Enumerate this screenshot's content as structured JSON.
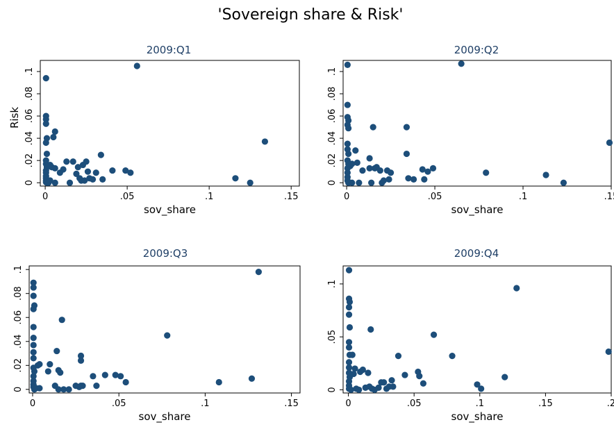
{
  "figure_title": "'Sovereign share & Risk'",
  "colors": {
    "marker": "#1d4e7a",
    "panel_title": "#1f3f66"
  },
  "chart_data": [
    {
      "type": "scatter",
      "title": "2009:Q1",
      "xlabel": "sov_share",
      "ylabel": "Risk",
      "xlim": [
        -0.003,
        0.155
      ],
      "ylim": [
        -0.003,
        0.11
      ],
      "x_ticks": [
        0,
        0.05,
        0.1,
        0.15
      ],
      "x_tick_labels": [
        "0",
        ".05",
        ".1",
        ".15"
      ],
      "y_ticks": [
        0,
        0.02,
        0.04,
        0.06,
        0.08,
        0.1
      ],
      "y_tick_labels": [
        "0",
        ".02",
        ".04",
        ".06",
        ".08",
        ".1"
      ],
      "grid": false,
      "points": [
        [
          0.0005,
          0.094
        ],
        [
          0.0005,
          0.06
        ],
        [
          0.0005,
          0.057
        ],
        [
          0.0005,
          0.053
        ],
        [
          0.001,
          0.04
        ],
        [
          0.0005,
          0.036
        ],
        [
          0.001,
          0.026
        ],
        [
          0.0005,
          0.02
        ],
        [
          0.0005,
          0.017
        ],
        [
          0.001,
          0.014
        ],
        [
          0.0005,
          0.011
        ],
        [
          0.0005,
          0.009
        ],
        [
          0.0005,
          0.006
        ],
        [
          0.0005,
          0.004
        ],
        [
          0.0005,
          0.002
        ],
        [
          0.0005,
          0.0005
        ],
        [
          0.001,
          0
        ],
        [
          0.002,
          0
        ],
        [
          0.003,
          0.016
        ],
        [
          0.003,
          0.002
        ],
        [
          0.004,
          0.014
        ],
        [
          0.005,
          0.041
        ],
        [
          0.006,
          0.046
        ],
        [
          0.006,
          0.013
        ],
        [
          0.006,
          0
        ],
        [
          0.009,
          0.009
        ],
        [
          0.011,
          0.012
        ],
        [
          0.013,
          0.019
        ],
        [
          0.015,
          0
        ],
        [
          0.017,
          0.019
        ],
        [
          0.019,
          0.008
        ],
        [
          0.02,
          0.014
        ],
        [
          0.021,
          0.004
        ],
        [
          0.022,
          0.002
        ],
        [
          0.023,
          0.016
        ],
        [
          0.024,
          0.002
        ],
        [
          0.025,
          0.019
        ],
        [
          0.026,
          0.01
        ],
        [
          0.027,
          0.004
        ],
        [
          0.029,
          0.003
        ],
        [
          0.031,
          0.009
        ],
        [
          0.034,
          0.025
        ],
        [
          0.035,
          0.003
        ],
        [
          0.041,
          0.011
        ],
        [
          0.049,
          0.011
        ],
        [
          0.052,
          0.009
        ],
        [
          0.056,
          0.105
        ],
        [
          0.116,
          0.004
        ],
        [
          0.125,
          0
        ],
        [
          0.134,
          0.037
        ]
      ]
    },
    {
      "type": "scatter",
      "title": "2009:Q2",
      "xlabel": "sov_share",
      "ylabel": "",
      "xlim": [
        -0.002,
        0.15
      ],
      "ylim": [
        -0.003,
        0.11
      ],
      "x_ticks": [
        0,
        0.05,
        0.1,
        0.15
      ],
      "x_tick_labels": [
        "0",
        ".05",
        ".1",
        ".15"
      ],
      "y_ticks": [
        0,
        0.02,
        0.04,
        0.06,
        0.08,
        0.1
      ],
      "y_tick_labels": [
        "0",
        ".02",
        ".04",
        ".06",
        ".08",
        ".1"
      ],
      "grid": false,
      "points": [
        [
          0.0005,
          0.106
        ],
        [
          0.0005,
          0.07
        ],
        [
          0.0005,
          0.059
        ],
        [
          0.001,
          0.056
        ],
        [
          0.0005,
          0.052
        ],
        [
          0.001,
          0.049
        ],
        [
          0.0005,
          0.035
        ],
        [
          0.0005,
          0.03
        ],
        [
          0.001,
          0.026
        ],
        [
          0.0005,
          0.02
        ],
        [
          0.001,
          0.017
        ],
        [
          0.0005,
          0.013
        ],
        [
          0.0005,
          0.009
        ],
        [
          0.0005,
          0.005
        ],
        [
          0.0005,
          0.002
        ],
        [
          0.001,
          0
        ],
        [
          0.002,
          0.015
        ],
        [
          0.003,
          0.017
        ],
        [
          0.003,
          0
        ],
        [
          0.005,
          0.029
        ],
        [
          0.006,
          0.018
        ],
        [
          0.007,
          0
        ],
        [
          0.009,
          0.011
        ],
        [
          0.013,
          0.022
        ],
        [
          0.013,
          0.013
        ],
        [
          0.014,
          0
        ],
        [
          0.015,
          0.05
        ],
        [
          0.016,
          0.013
        ],
        [
          0.017,
          0.014
        ],
        [
          0.019,
          0.011
        ],
        [
          0.02,
          0
        ],
        [
          0.021,
          0.002
        ],
        [
          0.023,
          0.011
        ],
        [
          0.024,
          0.003
        ],
        [
          0.025,
          0.009
        ],
        [
          0.034,
          0.05
        ],
        [
          0.034,
          0.026
        ],
        [
          0.035,
          0.004
        ],
        [
          0.038,
          0.003
        ],
        [
          0.043,
          0.012
        ],
        [
          0.044,
          0.003
        ],
        [
          0.046,
          0.01
        ],
        [
          0.049,
          0.013
        ],
        [
          0.065,
          0.107
        ],
        [
          0.079,
          0.009
        ],
        [
          0.113,
          0.007
        ],
        [
          0.123,
          0
        ],
        [
          0.149,
          0.036
        ]
      ]
    },
    {
      "type": "scatter",
      "title": "2009:Q3",
      "xlabel": "sov_share",
      "ylabel": "",
      "xlim": [
        -0.002,
        0.155
      ],
      "ylim": [
        -0.003,
        0.103
      ],
      "x_ticks": [
        0,
        0.05,
        0.1,
        0.15
      ],
      "x_tick_labels": [
        "0",
        ".05",
        ".1",
        ".15"
      ],
      "y_ticks": [
        0,
        0.02,
        0.04,
        0.06,
        0.08,
        0.1
      ],
      "y_tick_labels": [
        "0",
        ".02",
        ".04",
        ".06",
        ".08",
        ".1"
      ],
      "grid": false,
      "points": [
        [
          0.0005,
          0.089
        ],
        [
          0.0005,
          0.085
        ],
        [
          0.0005,
          0.078
        ],
        [
          0.001,
          0.07
        ],
        [
          0.0005,
          0.067
        ],
        [
          0.0005,
          0.052
        ],
        [
          0.0005,
          0.043
        ],
        [
          0.0005,
          0.037
        ],
        [
          0.0005,
          0.031
        ],
        [
          0.0005,
          0.026
        ],
        [
          0.0005,
          0.018
        ],
        [
          0.001,
          0.015
        ],
        [
          0.0005,
          0.011
        ],
        [
          0.0005,
          0.007
        ],
        [
          0.0005,
          0.004
        ],
        [
          0.0005,
          0.002
        ],
        [
          0.001,
          0
        ],
        [
          0.002,
          0.001
        ],
        [
          0.003,
          0.02
        ],
        [
          0.004,
          0.021
        ],
        [
          0.004,
          0.001
        ],
        [
          0.009,
          0.015
        ],
        [
          0.01,
          0.021
        ],
        [
          0.013,
          0.003
        ],
        [
          0.014,
          0.032
        ],
        [
          0.015,
          0.016
        ],
        [
          0.015,
          0
        ],
        [
          0.016,
          0.014
        ],
        [
          0.017,
          0.058
        ],
        [
          0.018,
          0
        ],
        [
          0.021,
          0
        ],
        [
          0.025,
          0.003
        ],
        [
          0.027,
          0.002
        ],
        [
          0.028,
          0.003
        ],
        [
          0.028,
          0.028
        ],
        [
          0.028,
          0.024
        ],
        [
          0.029,
          0.003
        ],
        [
          0.035,
          0.011
        ],
        [
          0.037,
          0.003
        ],
        [
          0.042,
          0.012
        ],
        [
          0.048,
          0.012
        ],
        [
          0.051,
          0.011
        ],
        [
          0.054,
          0.006
        ],
        [
          0.078,
          0.045
        ],
        [
          0.108,
          0.006
        ],
        [
          0.127,
          0.009
        ],
        [
          0.131,
          0.098
        ]
      ]
    },
    {
      "type": "scatter",
      "title": "2009:Q4",
      "xlabel": "sov_share",
      "ylabel": "",
      "xlim": [
        -0.004,
        0.2
      ],
      "ylim": [
        -0.003,
        0.117
      ],
      "x_ticks": [
        0,
        0.05,
        0.1,
        0.15,
        0.2
      ],
      "x_tick_labels": [
        "0",
        ".05",
        ".1",
        ".15",
        ".2"
      ],
      "y_ticks": [
        0,
        0.05,
        0.1
      ],
      "y_tick_labels": [
        "0",
        ".05",
        ".1"
      ],
      "grid": false,
      "points": [
        [
          0.0005,
          0.113
        ],
        [
          0.0005,
          0.086
        ],
        [
          0.001,
          0.083
        ],
        [
          0.0005,
          0.078
        ],
        [
          0.0005,
          0.071
        ],
        [
          0.001,
          0.059
        ],
        [
          0.0005,
          0.045
        ],
        [
          0.0005,
          0.04
        ],
        [
          0.001,
          0.033
        ],
        [
          0.0005,
          0.026
        ],
        [
          0.0005,
          0.021
        ],
        [
          0.0005,
          0.016
        ],
        [
          0.001,
          0.012
        ],
        [
          0.0005,
          0.008
        ],
        [
          0.0005,
          0.004
        ],
        [
          0.0005,
          0.001
        ],
        [
          0.002,
          0
        ],
        [
          0.003,
          0.033
        ],
        [
          0.004,
          0.015
        ],
        [
          0.005,
          0.02
        ],
        [
          0.006,
          0.001
        ],
        [
          0.008,
          0
        ],
        [
          0.009,
          0.017
        ],
        [
          0.011,
          0.019
        ],
        [
          0.013,
          0.002
        ],
        [
          0.015,
          0.016
        ],
        [
          0.016,
          0.003
        ],
        [
          0.017,
          0.057
        ],
        [
          0.018,
          0.001
        ],
        [
          0.02,
          0
        ],
        [
          0.023,
          0.002
        ],
        [
          0.025,
          0.007
        ],
        [
          0.027,
          0.007
        ],
        [
          0.029,
          0.001
        ],
        [
          0.031,
          0.003
        ],
        [
          0.033,
          0.009
        ],
        [
          0.034,
          0.003
        ],
        [
          0.038,
          0.032
        ],
        [
          0.043,
          0.014
        ],
        [
          0.053,
          0.017
        ],
        [
          0.054,
          0.013
        ],
        [
          0.057,
          0.006
        ],
        [
          0.065,
          0.052
        ],
        [
          0.079,
          0.032
        ],
        [
          0.098,
          0.005
        ],
        [
          0.101,
          0.001
        ],
        [
          0.119,
          0.012
        ],
        [
          0.128,
          0.096
        ],
        [
          0.198,
          0.036
        ]
      ]
    }
  ]
}
